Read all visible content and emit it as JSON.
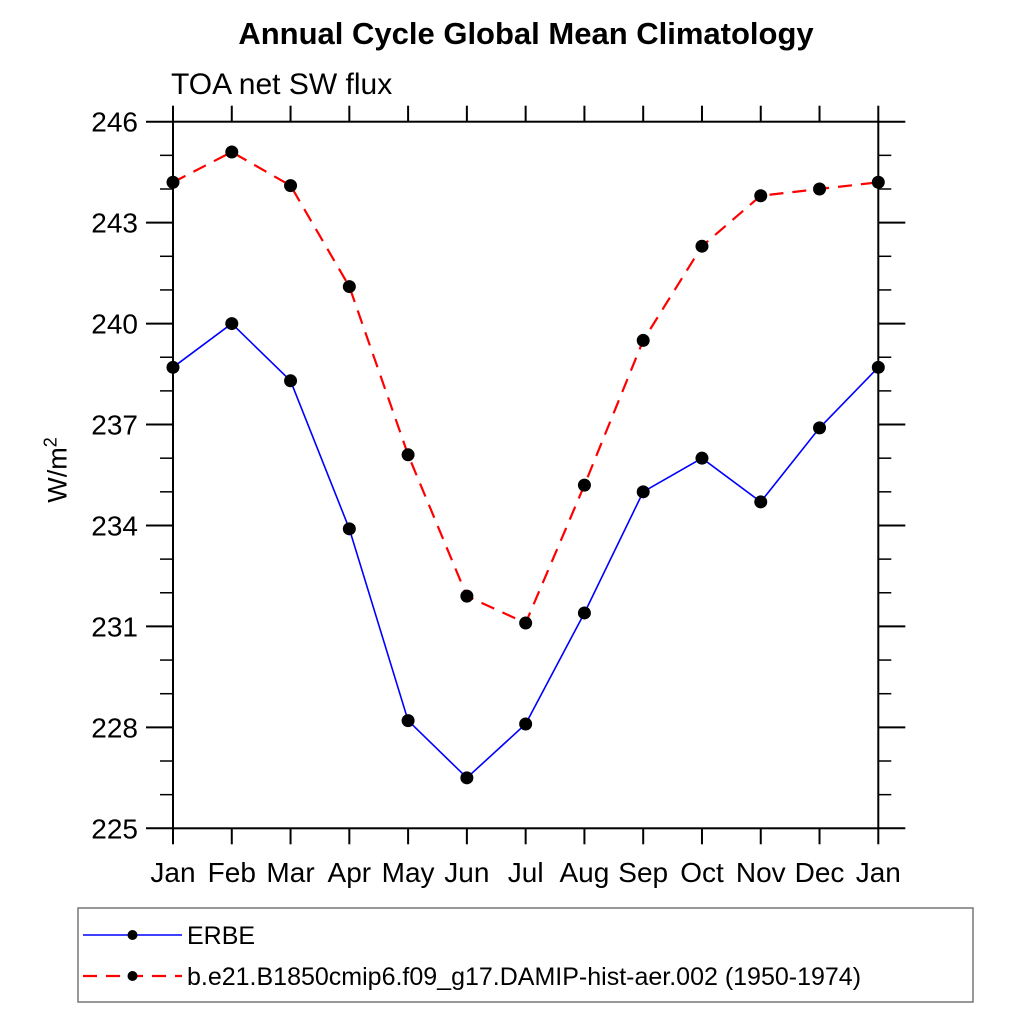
{
  "title": "Annual Cycle Global Mean Climatology",
  "subtitle": "TOA net SW flux",
  "ylabel": {
    "base": "W/m",
    "sup": "2"
  },
  "colors": {
    "erbe_line": "#0000ff",
    "model_line": "#ff0000",
    "marker": "#000000",
    "axis": "#000000",
    "legend_border": "#777777"
  },
  "chart_data": {
    "type": "line",
    "title": "Annual Cycle Global Mean Climatology",
    "subtitle": "TOA net SW flux",
    "ylabel": "W/m2",
    "categories": [
      "Jan",
      "Feb",
      "Mar",
      "Apr",
      "May",
      "Jun",
      "Jul",
      "Aug",
      "Sep",
      "Oct",
      "Nov",
      "Dec",
      "Jan"
    ],
    "series": [
      {
        "name": "ERBE",
        "color": "#0000ff",
        "line_style": "solid",
        "marker": "filled-circle",
        "marker_color": "#000000",
        "values": [
          238.7,
          240.0,
          238.3,
          233.9,
          228.2,
          226.5,
          228.1,
          231.4,
          235.0,
          236.0,
          234.7,
          236.9,
          238.7
        ]
      },
      {
        "name": "b.e21.B1850cmip6.f09_g17.DAMIP-hist-aer.002 (1950-1974)",
        "color": "#ff0000",
        "line_style": "dashed",
        "marker": "filled-circle",
        "marker_color": "#000000",
        "values": [
          244.2,
          245.1,
          244.1,
          241.1,
          236.1,
          231.9,
          231.1,
          235.2,
          239.5,
          242.3,
          243.8,
          244.0,
          244.2
        ]
      }
    ],
    "ylim": [
      225,
      246
    ],
    "ytick_major": [
      225,
      228,
      231,
      234,
      237,
      240,
      243,
      246
    ],
    "ytick_minor_step": 1,
    "grid": false,
    "legend_position": "bottom-box"
  }
}
